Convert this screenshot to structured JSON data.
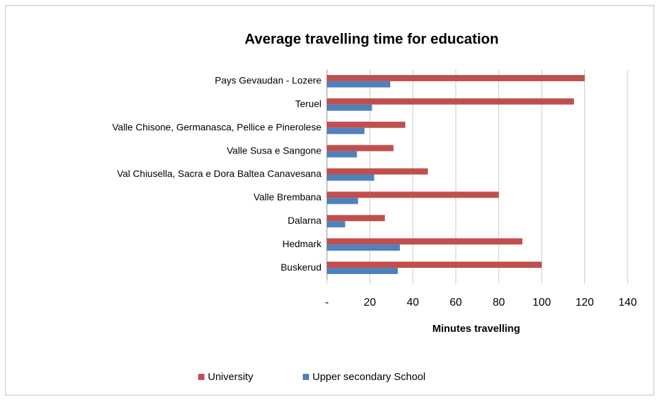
{
  "chart_data": {
    "type": "hbar",
    "title": "Average travelling time for education",
    "x_label": "Minutes travelling",
    "categories": [
      "Pays Gevaudan - Lozere",
      "Teruel",
      "Valle Chisone, Germanasca, Pellice e Pinerolese",
      "Valle Susa e Sangone",
      "Val Chiusella, Sacra e Dora Baltea Canavesana",
      "Valle Brembana",
      "Dalarna",
      "Hedmark",
      "Buskerud"
    ],
    "series": [
      {
        "name": "University",
        "color": "#c0504d",
        "values": [
          120,
          115,
          36.5,
          31,
          47,
          80,
          27,
          91,
          100
        ]
      },
      {
        "name": "Upper secondary School",
        "color": "#4f81bd",
        "values": [
          29.5,
          21,
          17.5,
          14,
          22,
          14.5,
          8.5,
          34,
          33
        ]
      }
    ],
    "xlim": [
      0,
      140
    ],
    "xticks": [
      {
        "value": 0,
        "label": "-"
      },
      20,
      40,
      60,
      80,
      100,
      120,
      140
    ],
    "grid": true,
    "legend": "bottom"
  }
}
